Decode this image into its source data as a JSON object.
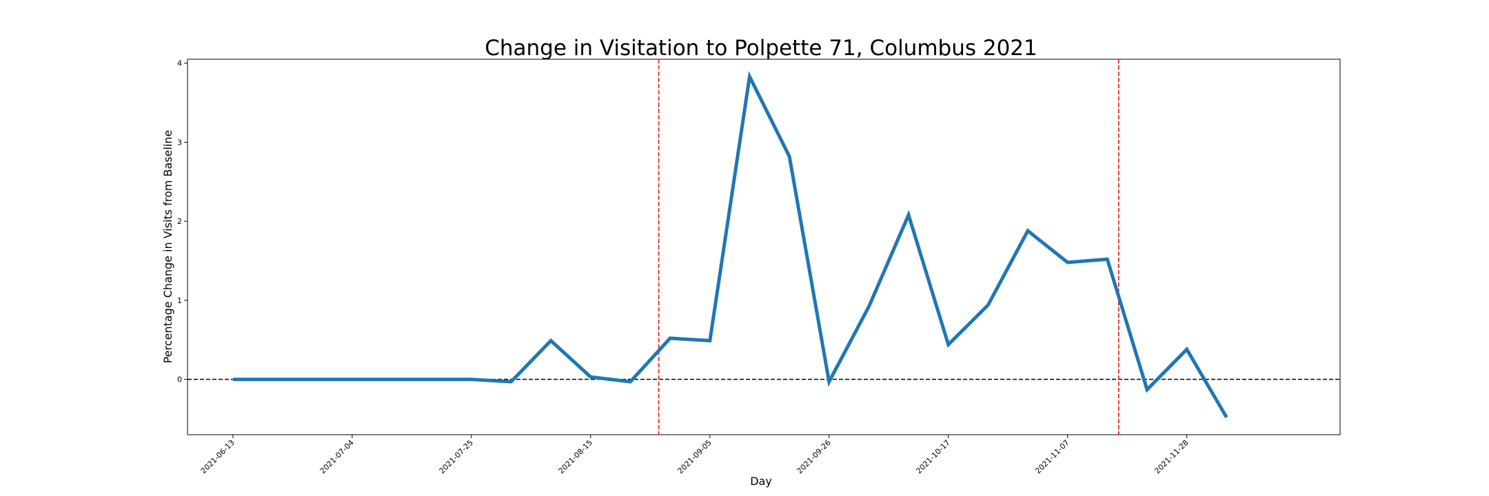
{
  "chart_data": {
    "type": "line",
    "title": "Change in Visitation to Polpette 71, Columbus 2021",
    "xlabel": "Day",
    "ylabel": "Percentage Change in Visits from Baseline",
    "x_type": "date",
    "x_tick_labels": [
      "2021-06-13",
      "2021-07-04",
      "2021-07-25",
      "2021-08-15",
      "2021-09-05",
      "2021-09-26",
      "2021-10-17",
      "2021-11-07",
      "2021-11-28"
    ],
    "y_ticks": [
      "0",
      "1",
      "2",
      "3",
      "4"
    ],
    "xlim": [
      "2021-06-05",
      "2021-12-25"
    ],
    "ylim": [
      -0.7,
      4.05
    ],
    "grid": false,
    "series": [
      {
        "color": "#1f77b4",
        "x": [
          "2021-06-13",
          "2021-06-20",
          "2021-06-27",
          "2021-07-04",
          "2021-07-11",
          "2021-07-18",
          "2021-07-25",
          "2021-08-01",
          "2021-08-08",
          "2021-08-15",
          "2021-08-22",
          "2021-08-29",
          "2021-09-05",
          "2021-09-12",
          "2021-09-19",
          "2021-09-26",
          "2021-10-03",
          "2021-10-10",
          "2021-10-17",
          "2021-10-24",
          "2021-10-31",
          "2021-11-07",
          "2021-11-14",
          "2021-11-21",
          "2021-11-28",
          "2021-12-05"
        ],
        "y": [
          0,
          0,
          0,
          0,
          0,
          0,
          0,
          -0.03,
          0.49,
          0.03,
          -0.03,
          0.52,
          0.49,
          3.83,
          2.82,
          -0.03,
          0.92,
          2.08,
          0.44,
          0.94,
          1.88,
          1.48,
          1.52,
          -0.13,
          0.38,
          -0.48
        ]
      }
    ],
    "reference_lines": [
      {
        "orientation": "horizontal",
        "value": 0,
        "color": "#000000",
        "style": "dashed"
      },
      {
        "orientation": "vertical",
        "value": "2021-08-27",
        "color": "#ff0000",
        "style": "dashed"
      },
      {
        "orientation": "vertical",
        "value": "2021-11-16",
        "color": "#ff0000",
        "style": "dashed"
      }
    ]
  }
}
